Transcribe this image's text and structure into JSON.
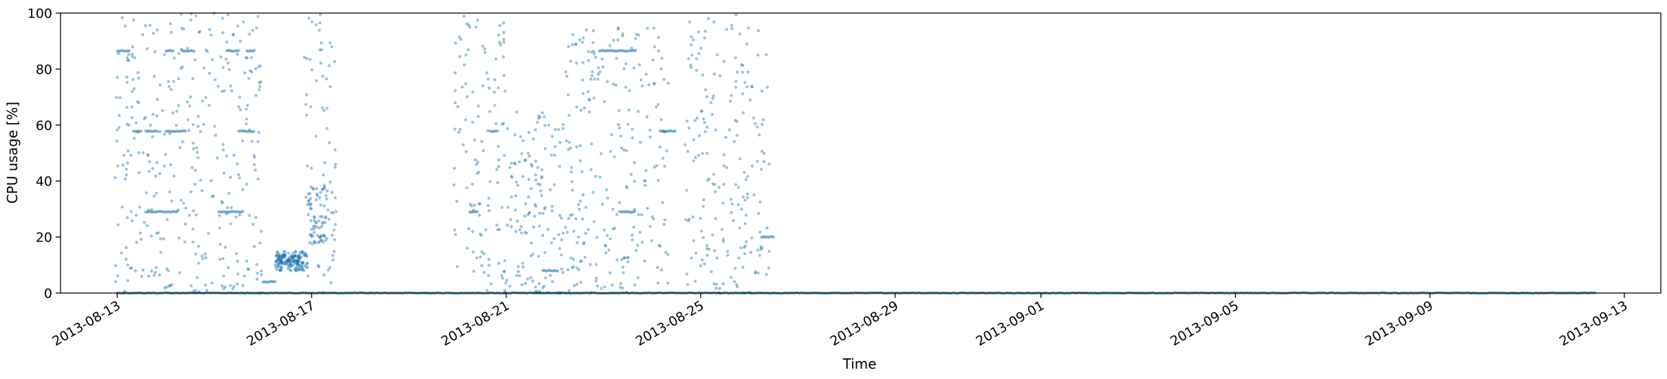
{
  "chart_data": {
    "type": "scatter",
    "xlabel": "Time",
    "ylabel": "CPU usage [%]",
    "ylim": [
      0,
      100
    ],
    "xlim": [
      "2013-08-11T20:00",
      "2013-09-13T18:00"
    ],
    "grid": false,
    "marker_color": "#1f77b4",
    "marker_alpha": 0.45,
    "x_ticks": [
      "2013-08-13",
      "2013-08-17",
      "2013-08-21",
      "2013-08-25",
      "2013-08-29",
      "2013-09-01",
      "2013-09-05",
      "2013-09-09",
      "2013-09-13"
    ],
    "y_ticks": [
      0,
      20,
      40,
      60,
      80,
      100
    ],
    "segments": [
      {
        "from": "2013-08-13T00:00",
        "to": "2013-09-12T10:00",
        "y": 0
      },
      {
        "from": "2013-08-13T00:00",
        "to": "2013-08-13T06:00",
        "y": 86.5
      },
      {
        "from": "2013-08-13T08:00",
        "to": "2013-08-13T12:00",
        "y": 57.8
      },
      {
        "from": "2013-08-13T14:00",
        "to": "2013-08-13T20:00",
        "y": 57.8
      },
      {
        "from": "2013-08-14T00:00",
        "to": "2013-08-14T10:00",
        "y": 57.8
      },
      {
        "from": "2013-08-14T00:00",
        "to": "2013-08-14T04:00",
        "y": 86.5
      },
      {
        "from": "2013-08-14T08:00",
        "to": "2013-08-14T14:00",
        "y": 86.5
      },
      {
        "from": "2013-08-13T14:00",
        "to": "2013-08-14T06:00",
        "y": 29
      },
      {
        "from": "2013-08-15T06:00",
        "to": "2013-08-15T12:00",
        "y": 86.5
      },
      {
        "from": "2013-08-15T16:00",
        "to": "2013-08-15T20:00",
        "y": 86.5
      },
      {
        "from": "2013-08-15T12:00",
        "to": "2013-08-15T20:00",
        "y": 57.8
      },
      {
        "from": "2013-08-15T02:00",
        "to": "2013-08-15T14:00",
        "y": 29
      },
      {
        "from": "2013-08-16T00:00",
        "to": "2013-08-16T06:00",
        "y": 4
      },
      {
        "from": "2013-08-20T06:00",
        "to": "2013-08-20T10:00",
        "y": 29
      },
      {
        "from": "2013-08-20T16:00",
        "to": "2013-08-20T20:00",
        "y": 57.8
      },
      {
        "from": "2013-08-21T18:00",
        "to": "2013-08-22T02:00",
        "y": 8
      },
      {
        "from": "2013-08-22T22:00",
        "to": "2013-08-23T16:00",
        "y": 86.5
      },
      {
        "from": "2013-08-23T08:00",
        "to": "2013-08-23T16:00",
        "y": 29
      },
      {
        "from": "2013-08-24T04:00",
        "to": "2013-08-24T12:00",
        "y": 57.8
      },
      {
        "from": "2013-08-26T06:00",
        "to": "2013-08-26T12:00",
        "y": 20
      }
    ],
    "dense_clusters": [
      {
        "from": "2013-08-16T06:00",
        "to": "2013-08-16T22:00",
        "y_min": 8,
        "y_max": 15
      },
      {
        "from": "2013-08-16T06:00",
        "to": "2013-08-16T18:00",
        "y_min": 10,
        "y_max": 14
      },
      {
        "from": "2013-08-16T22:00",
        "to": "2013-08-17T08:00",
        "y_min": 18,
        "y_max": 38
      }
    ],
    "scatter_bands": [
      {
        "from": "2013-08-12T23:00",
        "to": "2013-08-16T00:00",
        "y_min": 0,
        "y_max": 100
      },
      {
        "from": "2013-08-16T20:00",
        "to": "2013-08-17T12:00",
        "y_min": 0,
        "y_max": 100
      },
      {
        "from": "2013-08-19T22:00",
        "to": "2013-08-21T00:00",
        "y_min": 0,
        "y_max": 100
      },
      {
        "from": "2013-08-21T00:00",
        "to": "2013-08-22T04:00",
        "y_min": 0,
        "y_max": 65
      },
      {
        "from": "2013-08-22T04:00",
        "to": "2013-08-24T08:00",
        "y_min": 0,
        "y_max": 95
      },
      {
        "from": "2013-08-24T16:00",
        "to": "2013-08-25T20:00",
        "y_min": 0,
        "y_max": 100
      },
      {
        "from": "2013-08-25T20:00",
        "to": "2013-08-26T10:00",
        "y_min": 0,
        "y_max": 95
      }
    ]
  }
}
